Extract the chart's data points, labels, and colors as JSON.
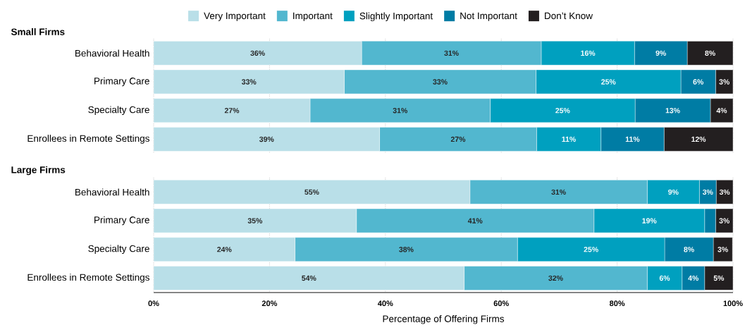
{
  "chart_data": [
    {
      "type": "bar",
      "orientation": "horizontal",
      "stacked": true,
      "title": "Small Firms",
      "categories": [
        "Behavioral Health",
        "Primary Care",
        "Specialty Care",
        "Enrollees in Remote Settings"
      ],
      "series": [
        {
          "name": "Very Important",
          "color": "#b9dfe8",
          "values": [
            35.9,
            32.9,
            27.0,
            39.0
          ],
          "value_labels": [
            "36%",
            "33%",
            "27%",
            "39%"
          ]
        },
        {
          "name": "Important",
          "color": "#52b7cf",
          "values": [
            31.0,
            33.1,
            31.1,
            27.1
          ],
          "value_labels": [
            "31%",
            "33%",
            "31%",
            "27%"
          ]
        },
        {
          "name": "Slightly Important",
          "color": "#00a0bf",
          "values": [
            16.1,
            25.0,
            25.0,
            11.1
          ],
          "value_labels": [
            "16%",
            "25%",
            "25%",
            "11%"
          ]
        },
        {
          "name": "Not Important",
          "color": "#007ca4",
          "values": [
            9.1,
            6.0,
            13.0,
            10.9
          ],
          "value_labels": [
            "9%",
            "6%",
            "13%",
            "11%"
          ]
        },
        {
          "name": "Don’t Know",
          "color": "#231f20",
          "values": [
            7.9,
            3.0,
            3.9,
            11.9
          ],
          "value_labels": [
            "8%",
            "3%",
            "4%",
            "12%"
          ]
        }
      ],
      "xlim": [
        0,
        100
      ],
      "xticks": [
        0,
        20,
        40,
        60,
        80,
        100
      ],
      "tick_labels": "y",
      "grid": "x",
      "legend": "top"
    },
    {
      "type": "bar",
      "orientation": "horizontal",
      "stacked": true,
      "title": "Large Firms",
      "xlabel": "Percentage of Offering Firms",
      "categories": [
        "Behavioral Health",
        "Primary Care",
        "Specialty Care",
        "Enrollees in Remote Settings"
      ],
      "series": [
        {
          "color": "#b9dfe8",
          "values": [
            54.6,
            35.0,
            24.4,
            53.6
          ],
          "value_labels": [
            "55%",
            "35%",
            "24%",
            "54%"
          ]
        },
        {
          "color": "#52b7cf",
          "values": [
            30.6,
            41.0,
            38.4,
            31.6
          ],
          "value_labels": [
            "31%",
            "41%",
            "38%",
            "32%"
          ]
        },
        {
          "color": "#00a0bf",
          "values": [
            9.0,
            19.1,
            25.4,
            6.0
          ],
          "value_labels": [
            "9%",
            "19%",
            "25%",
            "6%"
          ]
        },
        {
          "color": "#007ca4",
          "values": [
            2.9,
            1.9,
            8.4,
            3.9
          ],
          "value_labels": [
            "3%",
            null,
            "8%",
            "4%"
          ]
        },
        {
          "color": "#231f20",
          "values": [
            2.9,
            3.0,
            3.3,
            4.9
          ],
          "value_labels": [
            "3%",
            "3%",
            "3%",
            "5%"
          ]
        }
      ],
      "xlim": [
        0,
        100
      ],
      "xticks": [
        {
          "value": 0,
          "label": "0%"
        },
        {
          "value": 20,
          "label": "20%"
        },
        {
          "value": 40,
          "label": "40%"
        },
        {
          "value": 60,
          "label": "60%"
        },
        {
          "value": 80,
          "label": "80%"
        },
        {
          "value": 100,
          "label": "100%"
        }
      ],
      "grid": "x",
      "legend": false
    }
  ]
}
